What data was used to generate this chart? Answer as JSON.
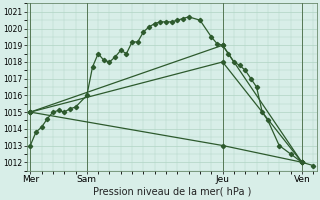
{
  "xlabel": "Pression niveau de la mer( hPa )",
  "bg_color": "#d8eee8",
  "plot_bg_color": "#d8eee8",
  "grid_color": "#b0d4c4",
  "line_color": "#2d5a2d",
  "ylim": [
    1011.5,
    1021.5
  ],
  "yticks": [
    1012,
    1013,
    1014,
    1015,
    1016,
    1017,
    1018,
    1019,
    1020,
    1021
  ],
  "xlim": [
    -0.3,
    25.3
  ],
  "day_positions": [
    0,
    5,
    17,
    24
  ],
  "day_labels": [
    "Mer",
    "Sam",
    "Jeu",
    "Ven"
  ],
  "vline_positions": [
    0,
    5,
    17,
    24
  ],
  "series": [
    {
      "x": [
        0,
        0.5,
        1,
        1.5,
        2,
        2.5,
        3,
        3.5,
        4,
        5,
        5.5,
        6,
        6.5,
        7,
        7.5,
        8,
        8.5,
        9,
        9.5,
        10,
        10.5,
        11,
        11.5,
        12,
        12.5,
        13,
        13.5,
        14,
        15,
        16,
        16.5,
        17,
        17.5,
        18,
        18.5,
        19,
        19.5,
        20,
        20.5,
        21,
        22,
        23,
        24,
        25
      ],
      "y": [
        1013.0,
        1013.8,
        1014.1,
        1014.6,
        1015.0,
        1015.1,
        1015.0,
        1015.2,
        1015.3,
        1016.0,
        1017.7,
        1018.5,
        1018.1,
        1018.0,
        1018.3,
        1018.7,
        1018.5,
        1019.2,
        1019.2,
        1019.8,
        1020.1,
        1020.3,
        1020.4,
        1020.4,
        1020.4,
        1020.5,
        1020.6,
        1020.7,
        1020.5,
        1019.5,
        1019.1,
        1019.0,
        1018.5,
        1018.0,
        1017.8,
        1017.5,
        1017.0,
        1016.5,
        1015.0,
        1014.5,
        1013.0,
        1012.5,
        1012.0,
        1011.8
      ]
    },
    {
      "x": [
        0,
        17,
        24
      ],
      "y": [
        1015.0,
        1019.0,
        1012.0
      ]
    },
    {
      "x": [
        0,
        17,
        24
      ],
      "y": [
        1015.0,
        1018.0,
        1012.0
      ]
    },
    {
      "x": [
        0,
        17,
        24
      ],
      "y": [
        1015.0,
        1013.0,
        1012.0
      ]
    }
  ]
}
